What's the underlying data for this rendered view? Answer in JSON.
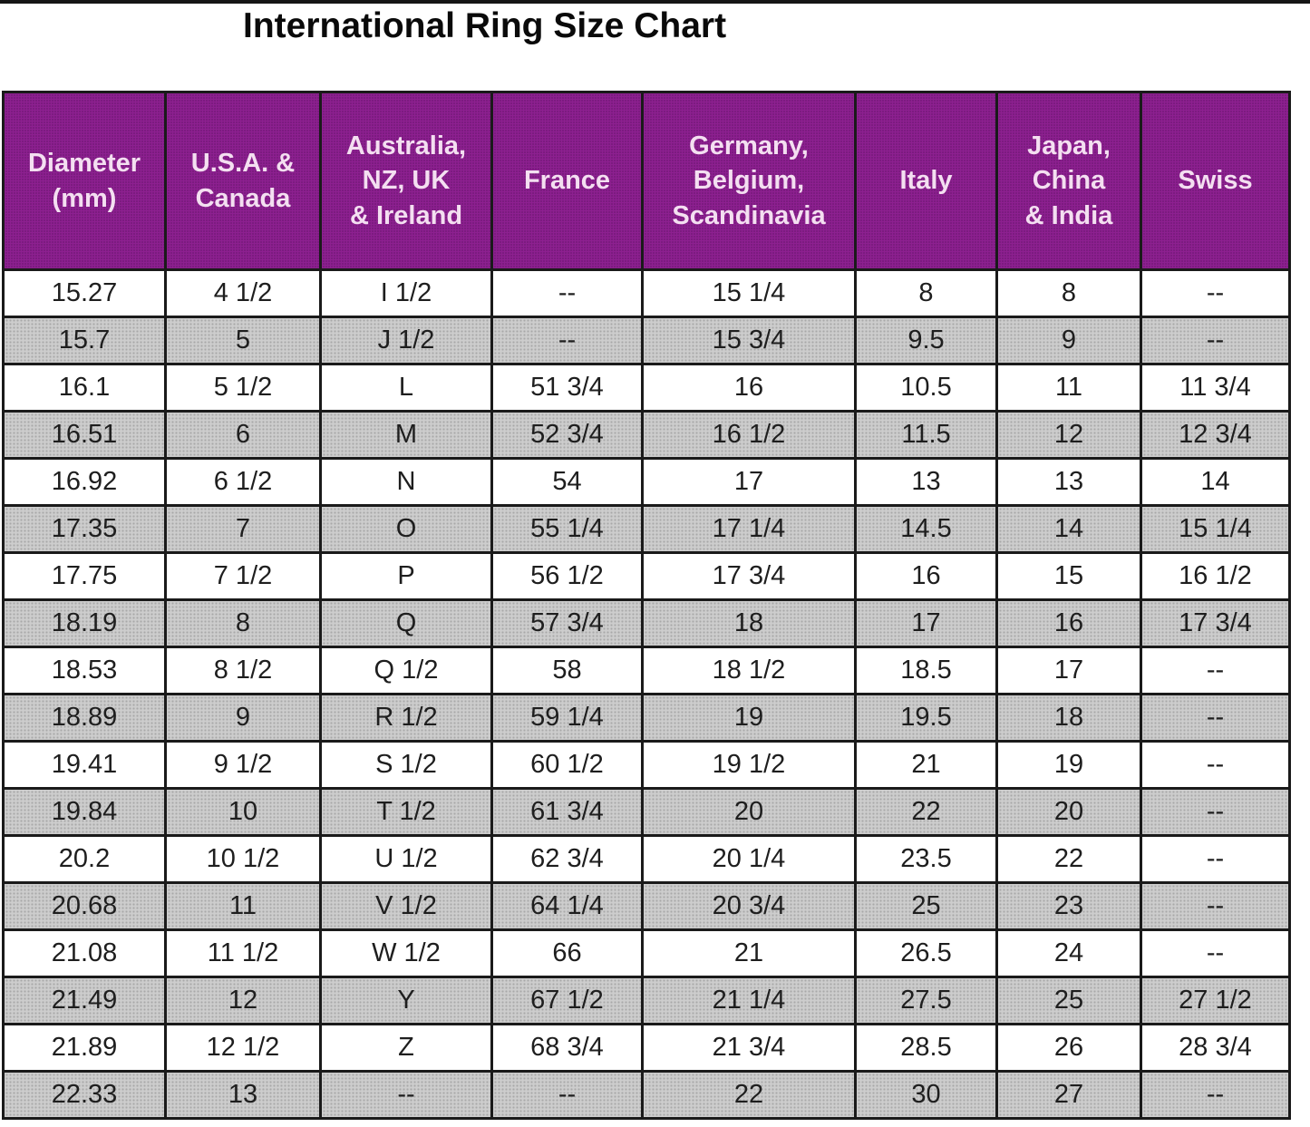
{
  "page": {
    "title": "International Ring Size Chart",
    "colors": {
      "header_bg": "#8D2090",
      "header_text": "#F4DFF1",
      "row_white": "#FFFFFF",
      "row_gray_dotted": "#CDCDCD",
      "grid_border": "#1A1A1A",
      "title_text": "#0A0A0A",
      "top_edge_bar": "#161616"
    }
  },
  "chart_data": {
    "type": "table",
    "title": "International Ring Size Chart",
    "columns": [
      "Diameter (mm)",
      "U.S.A. & Canada",
      "Australia, NZ, UK & Ireland",
      "France",
      "Germany, Belgium, Scandinavia",
      "Italy",
      "Japan, China & India",
      "Swiss"
    ],
    "column_labels_multiline": [
      "Diameter\n(mm)",
      "U.S.A. &\nCanada",
      "Australia,\nNZ, UK\n& Ireland",
      "France",
      "Germany,\nBelgium,\nScandinavia",
      "Italy",
      "Japan,\nChina\n& India",
      "Swiss"
    ],
    "rows": [
      [
        "15.27",
        "4 1/2",
        "I 1/2",
        "--",
        "15 1/4",
        "8",
        "8",
        "--"
      ],
      [
        "15.7",
        "5",
        "J 1/2",
        "--",
        "15 3/4",
        "9.5",
        "9",
        "--"
      ],
      [
        "16.1",
        "5 1/2",
        "L",
        "51 3/4",
        "16",
        "10.5",
        "11",
        "11 3/4"
      ],
      [
        "16.51",
        "6",
        "M",
        "52 3/4",
        "16 1/2",
        "11.5",
        "12",
        "12 3/4"
      ],
      [
        "16.92",
        "6 1/2",
        "N",
        "54",
        "17",
        "13",
        "13",
        "14"
      ],
      [
        "17.35",
        "7",
        "O",
        "55 1/4",
        "17 1/4",
        "14.5",
        "14",
        "15 1/4"
      ],
      [
        "17.75",
        "7 1/2",
        "P",
        "56 1/2",
        "17 3/4",
        "16",
        "15",
        "16 1/2"
      ],
      [
        "18.19",
        "8",
        "Q",
        "57 3/4",
        "18",
        "17",
        "16",
        "17 3/4"
      ],
      [
        "18.53",
        "8 1/2",
        "Q 1/2",
        "58",
        "18 1/2",
        "18.5",
        "17",
        "--"
      ],
      [
        "18.89",
        "9",
        "R 1/2",
        "59 1/4",
        "19",
        "19.5",
        "18",
        "--"
      ],
      [
        "19.41",
        "9 1/2",
        "S 1/2",
        "60 1/2",
        "19 1/2",
        "21",
        "19",
        "--"
      ],
      [
        "19.84",
        "10",
        "T 1/2",
        "61 3/4",
        "20",
        "22",
        "20",
        "--"
      ],
      [
        "20.2",
        "10 1/2",
        "U 1/2",
        "62 3/4",
        "20 1/4",
        "23.5",
        "22",
        "--"
      ],
      [
        "20.68",
        "11",
        "V 1/2",
        "64 1/4",
        "20 3/4",
        "25",
        "23",
        "--"
      ],
      [
        "21.08",
        "11 1/2",
        "W 1/2",
        "66",
        "21",
        "26.5",
        "24",
        "--"
      ],
      [
        "21.49",
        "12",
        "Y",
        "67 1/2",
        "21 1/4",
        "27.5",
        "25",
        "27 1/2"
      ],
      [
        "21.89",
        "12 1/2",
        "Z",
        "68 3/4",
        "21 3/4",
        "28.5",
        "26",
        "28 3/4"
      ],
      [
        "22.33",
        "13",
        "--",
        "--",
        "22",
        "30",
        "27",
        "--"
      ]
    ],
    "layout": {
      "row_striping": [
        "white",
        "gray"
      ],
      "grid": true,
      "legend_position": "none"
    }
  }
}
